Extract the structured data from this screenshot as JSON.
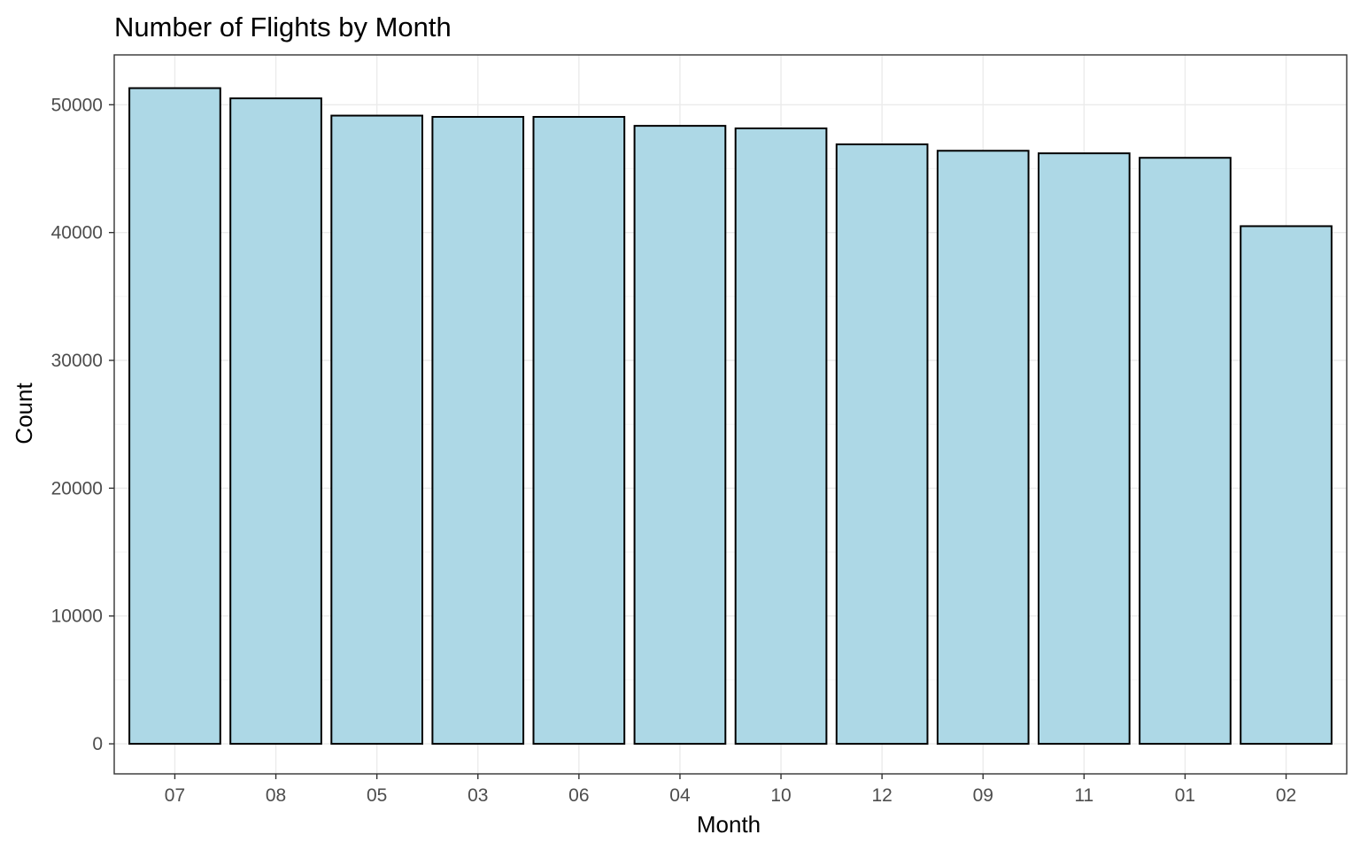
{
  "chart_data": {
    "type": "bar",
    "title": "Number of Flights by Month",
    "xlabel": "Month",
    "ylabel": "Count",
    "categories": [
      "07",
      "08",
      "05",
      "03",
      "06",
      "04",
      "10",
      "12",
      "09",
      "11",
      "01",
      "02"
    ],
    "values": [
      51300,
      50500,
      49150,
      49050,
      49050,
      48350,
      48150,
      46900,
      46400,
      46200,
      45850,
      40500
    ],
    "y_ticks": [
      0,
      10000,
      20000,
      30000,
      40000,
      50000
    ],
    "ylim": [
      -2350,
      53900
    ],
    "grid": true,
    "legend": "none",
    "colors": {
      "bar_fill": "#add8e6",
      "bar_stroke": "#000000",
      "grid": "#ebebeb"
    }
  }
}
